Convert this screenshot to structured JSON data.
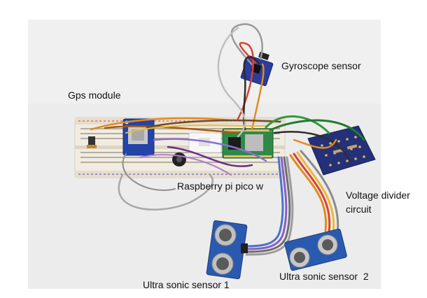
{
  "labels": {
    "gyroscope": "Gyroscope sensor",
    "gps": "Gps module",
    "pico": "Raspberry pi pico w",
    "divider_line1": "Voltage divider",
    "divider_line2": "circuit",
    "ultrasonic1": "Ultra sonic sensor 1",
    "ultrasonic2": "Ultra sonic sensor  2"
  },
  "colors": {
    "background": "#ffffff",
    "backdrop": "#eeeeee",
    "breadboard": "#f1ece2",
    "sensor_board": "#2a3d9c",
    "pico_board": "#2f8a4a"
  }
}
